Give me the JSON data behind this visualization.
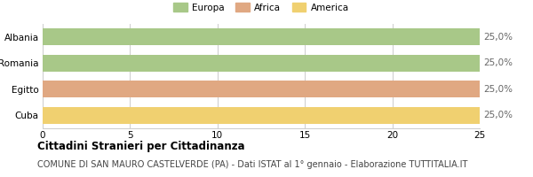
{
  "categories": [
    "Albania",
    "Romania",
    "Egitto",
    "Cuba"
  ],
  "values": [
    25,
    25,
    25,
    25
  ],
  "bar_colors": [
    "#a8c888",
    "#a8c888",
    "#e0a882",
    "#f0d070"
  ],
  "legend_labels": [
    "Europa",
    "Africa",
    "America"
  ],
  "legend_colors": [
    "#a8c888",
    "#e0a882",
    "#f0d070"
  ],
  "value_labels": [
    "25,0%",
    "25,0%",
    "25,0%",
    "25,0%"
  ],
  "xlim": [
    0,
    25
  ],
  "xticks": [
    0,
    5,
    10,
    15,
    20,
    25
  ],
  "title": "Cittadini Stranieri per Cittadinanza",
  "subtitle": "COMUNE DI SAN MAURO CASTELVERDE (PA) - Dati ISTAT al 1° gennaio - Elaborazione TUTTITALIA.IT",
  "title_fontsize": 8.5,
  "subtitle_fontsize": 7.0,
  "tick_fontsize": 7.5,
  "label_fontsize": 7.5,
  "value_fontsize": 7.5,
  "background_color": "#ffffff",
  "bar_height": 0.65,
  "grid_color": "#cccccc"
}
